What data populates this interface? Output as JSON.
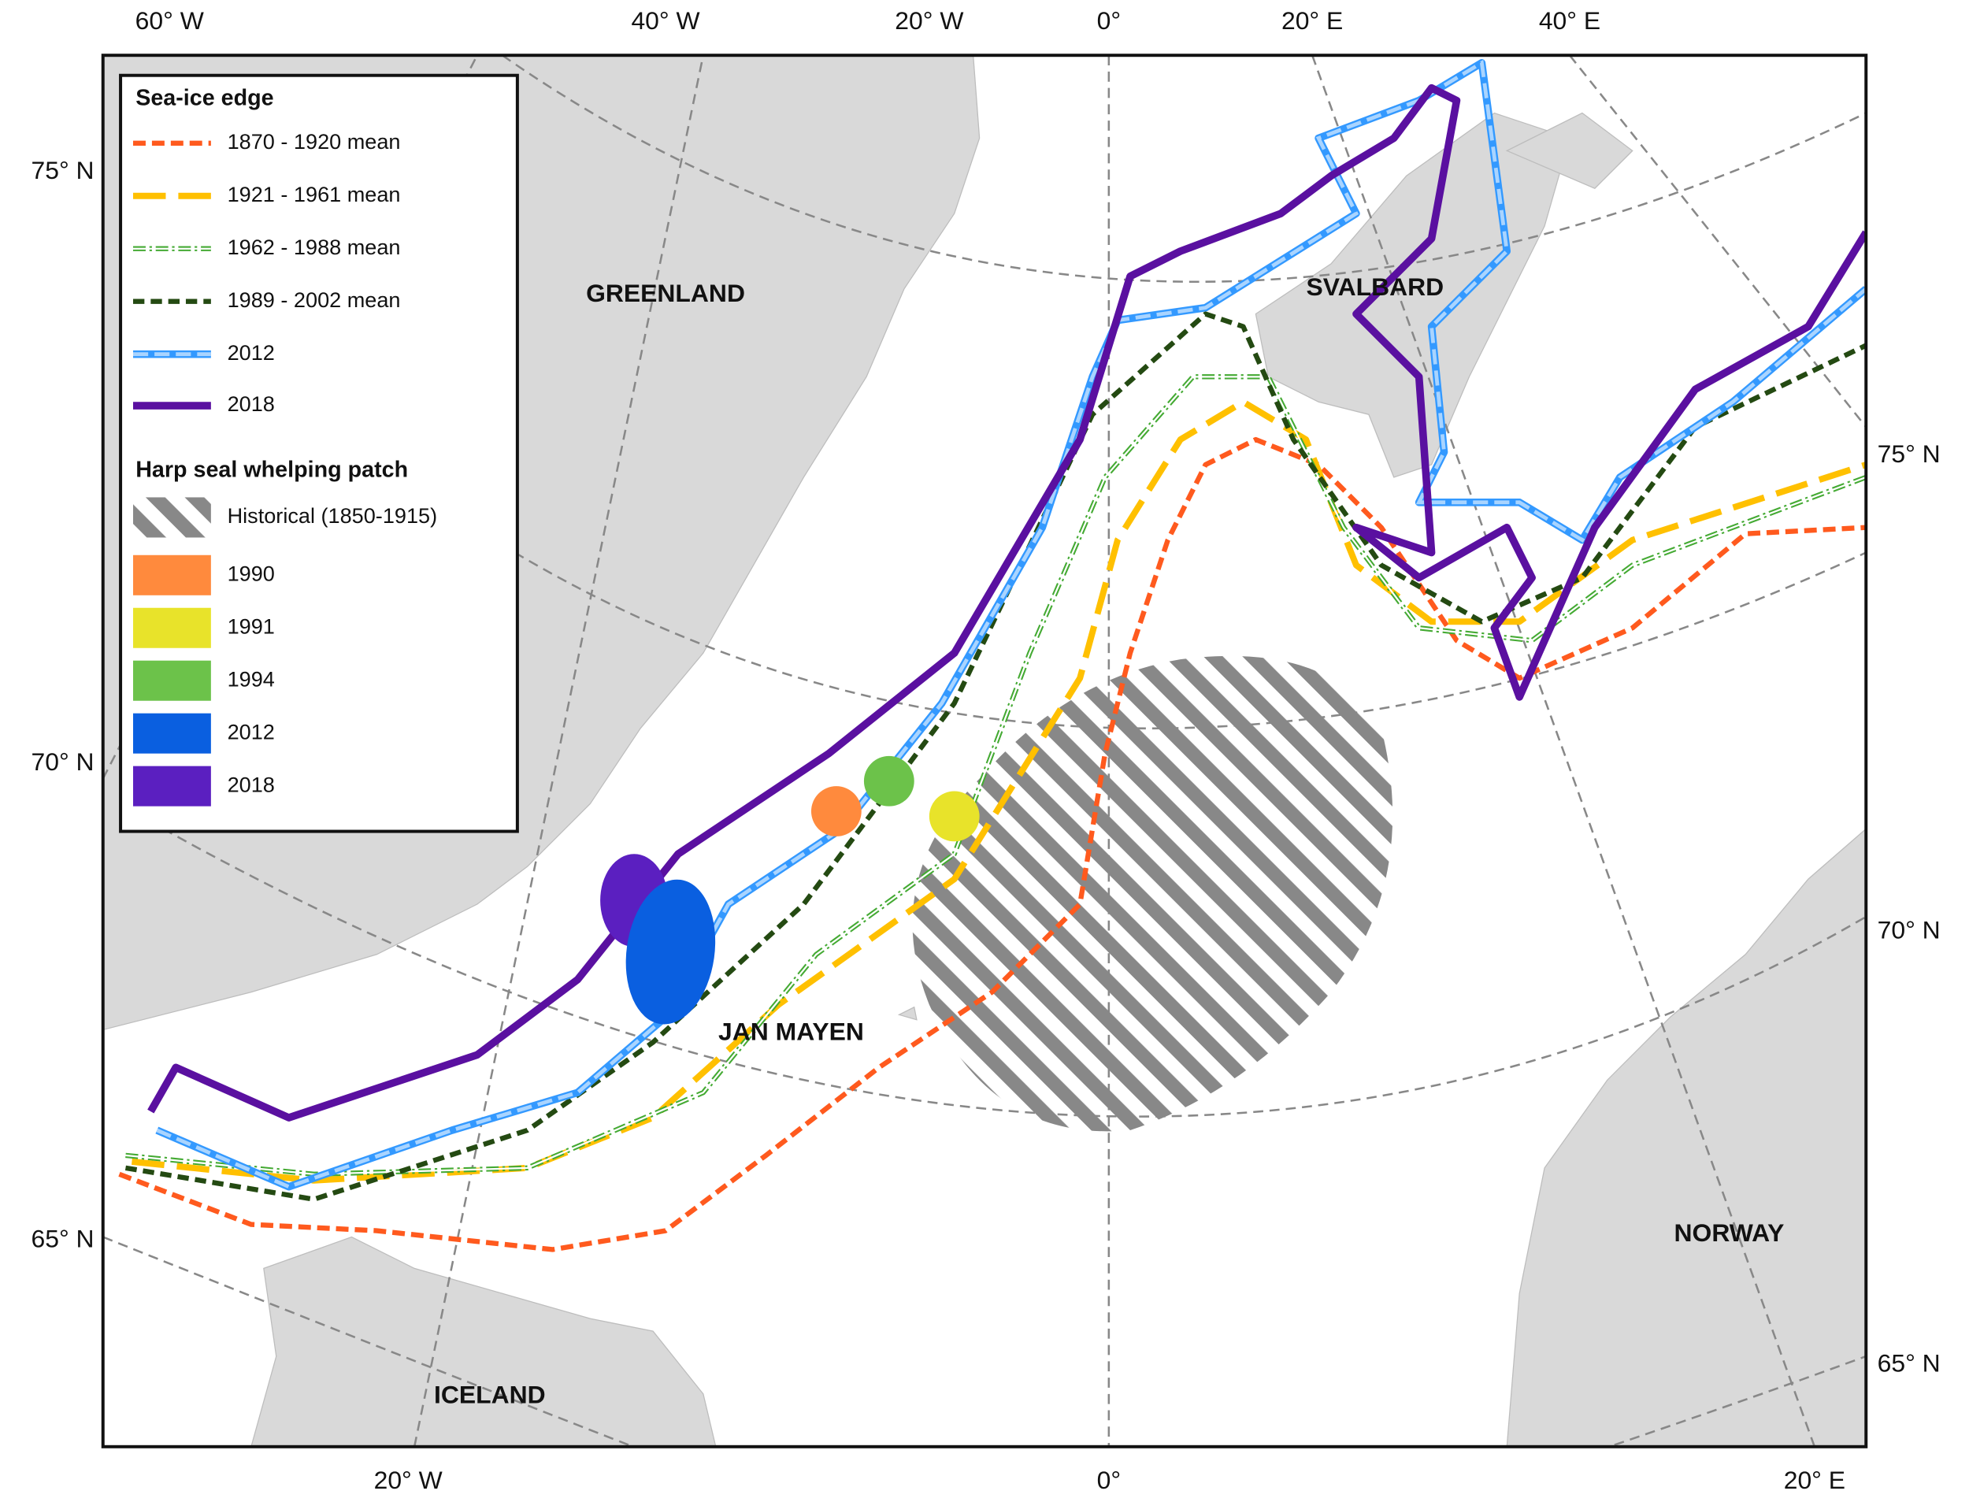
{
  "map": {
    "graticule_labels": {
      "top": [
        "60° W",
        "40° W",
        "20° W",
        "0°",
        "20° E",
        "40° E"
      ],
      "left": [
        "75° N",
        "70° N",
        "65° N"
      ],
      "right": [
        "75° N",
        "70° N",
        "65° N"
      ],
      "bottom": [
        "20° W",
        "0°",
        "20° E"
      ]
    },
    "places": [
      "GREENLAND",
      "SVALBARD",
      "JAN MAYEN",
      "ICELAND",
      "NORWAY"
    ],
    "legend": {
      "ice_title": "Sea-ice edge",
      "ice_edges": [
        {
          "name": "1870 - 1920 mean",
          "color": "#ff5a1e"
        },
        {
          "name": "1921 - 1961 mean",
          "color": "#ffc000"
        },
        {
          "name": "1962 - 1988 mean",
          "color": "#44aa33"
        },
        {
          "name": "1989 - 2002 mean",
          "color": "#244a12"
        },
        {
          "name": "2012",
          "color": "#3399ff"
        },
        {
          "name": "2018",
          "color": "#5a10a0"
        }
      ],
      "patch_title": "Harp seal whelping patch",
      "patches": [
        {
          "name": "Historical (1850-1915)",
          "color": "#888888"
        },
        {
          "name": "1990",
          "color": "#ff8a3d"
        },
        {
          "name": "1991",
          "color": "#e8e32a"
        },
        {
          "name": "1994",
          "color": "#6cc24a"
        },
        {
          "name": "2012",
          "color": "#0a5fe0"
        },
        {
          "name": "2018",
          "color": "#5b1fc0"
        }
      ]
    }
  }
}
